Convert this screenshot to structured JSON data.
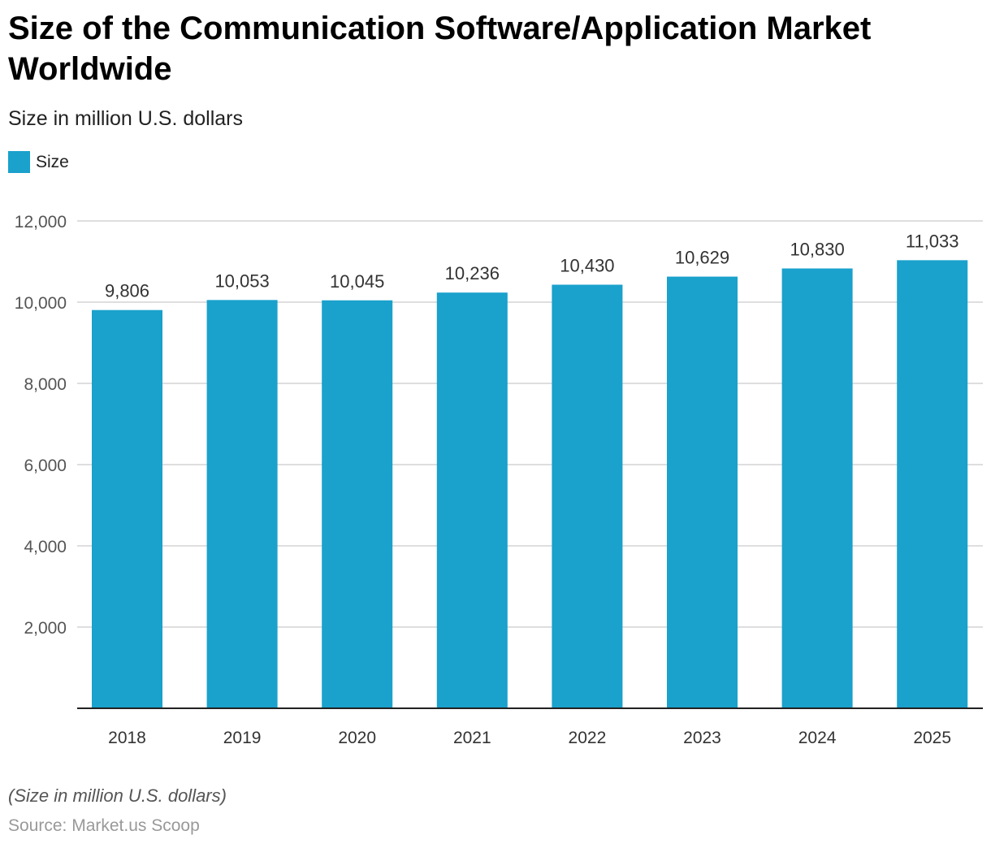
{
  "title": "Size of the Communication Software/Application Market Worldwide",
  "subtitle": "Size in million U.S. dollars",
  "legend": {
    "items": [
      {
        "label": "Size",
        "color": "#1aa1cc"
      }
    ]
  },
  "footer": {
    "note": "(Size in million U.S. dollars)",
    "source": "Source: Market.us Scoop"
  },
  "chart_data": {
    "type": "bar",
    "categories": [
      "2018",
      "2019",
      "2020",
      "2021",
      "2022",
      "2023",
      "2024",
      "2025"
    ],
    "series": [
      {
        "name": "Size",
        "values": [
          9806,
          10053,
          10045,
          10236,
          10430,
          10629,
          10830,
          11033
        ],
        "labels": [
          "9,806",
          "10,053",
          "10,045",
          "10,236",
          "10,430",
          "10,629",
          "10,830",
          "11,033"
        ],
        "color": "#1aa1cc"
      }
    ],
    "yticks": [
      {
        "value": 2000,
        "label": "2,000"
      },
      {
        "value": 4000,
        "label": "4,000"
      },
      {
        "value": 6000,
        "label": "6,000"
      },
      {
        "value": 8000,
        "label": "8,000"
      },
      {
        "value": 10000,
        "label": "10,000"
      },
      {
        "value": 12000,
        "label": "12,000"
      }
    ],
    "ylim": [
      0,
      12000
    ],
    "grid": true,
    "legend_position": "top-left"
  }
}
